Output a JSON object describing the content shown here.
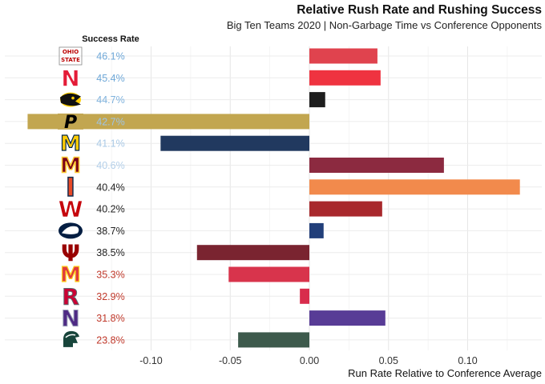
{
  "chart_data": {
    "type": "bar",
    "orientation": "horizontal",
    "title": "Relative Rush Rate and Rushing Success",
    "subtitle": "Big Ten Teams 2020 | Non-Garbage Time vs Conference Opponents",
    "xlabel": "Run Rate Relative to Conference Average",
    "success_rate_header": "Success Rate",
    "xlim": [
      -0.18,
      0.15
    ],
    "xticks": [
      -0.1,
      -0.05,
      0.0,
      0.05,
      0.1
    ],
    "xtick_labels": [
      "-0.10",
      "-0.05",
      "0.00",
      "0.05",
      "0.10"
    ],
    "grid": true,
    "teams": [
      {
        "logo": "ohio-state-logo",
        "logo_letter": "OHIO STATE",
        "success_rate": "46.1%",
        "sr_color": "#6fa8d8",
        "value": 0.043,
        "bar_color": "#e0434e",
        "logo_color": "#bb0000"
      },
      {
        "logo": "nebraska-logo",
        "logo_letter": "N",
        "success_rate": "45.4%",
        "sr_color": "#6fa8d8",
        "value": 0.045,
        "bar_color": "#ef3340",
        "logo_color": "#e41c38"
      },
      {
        "logo": "iowa-logo",
        "logo_letter": "",
        "success_rate": "44.7%",
        "sr_color": "#7fb2dd",
        "value": 0.01,
        "bar_color": "#1e1e1e",
        "logo_color": "#111111"
      },
      {
        "logo": "purdue-logo",
        "logo_letter": "P",
        "success_rate": "42.7%",
        "sr_color": "#9ec4e4",
        "value": -0.178,
        "bar_color": "#c2a650",
        "logo_color": "#000000"
      },
      {
        "logo": "michigan-logo",
        "logo_letter": "M",
        "success_rate": "41.1%",
        "sr_color": "#a9c9e6",
        "value": -0.094,
        "bar_color": "#21395f",
        "logo_color": "#ffcb05"
      },
      {
        "logo": "minnesota-logo",
        "logo_letter": "M",
        "success_rate": "40.6%",
        "sr_color": "#b3cfe9",
        "value": 0.085,
        "bar_color": "#8c2a40",
        "logo_color": "#7a0019"
      },
      {
        "logo": "illinois-logo",
        "logo_letter": "I",
        "success_rate": "40.4%",
        "sr_color": "#222222",
        "value": 0.133,
        "bar_color": "#f28a4c",
        "logo_color": "#e84a27"
      },
      {
        "logo": "wisconsin-logo",
        "logo_letter": "W",
        "success_rate": "40.2%",
        "sr_color": "#222222",
        "value": 0.046,
        "bar_color": "#a8282c",
        "logo_color": "#c5050c"
      },
      {
        "logo": "penn-state-logo",
        "logo_letter": "",
        "success_rate": "38.7%",
        "sr_color": "#222222",
        "value": 0.009,
        "bar_color": "#223f7a",
        "logo_color": "#041e42"
      },
      {
        "logo": "indiana-logo",
        "logo_letter": "IU",
        "success_rate": "38.5%",
        "sr_color": "#222222",
        "value": -0.071,
        "bar_color": "#7a2430",
        "logo_color": "#990000"
      },
      {
        "logo": "maryland-logo",
        "logo_letter": "M",
        "success_rate": "35.3%",
        "sr_color": "#c0392b",
        "value": -0.051,
        "bar_color": "#d8344c",
        "logo_color": "#e03a3e"
      },
      {
        "logo": "rutgers-logo",
        "logo_letter": "R",
        "success_rate": "32.9%",
        "sr_color": "#c0392b",
        "value": -0.006,
        "bar_color": "#d82c4c",
        "logo_color": "#cc0033"
      },
      {
        "logo": "northwestern-logo",
        "logo_letter": "N",
        "success_rate": "31.8%",
        "sr_color": "#c0392b",
        "value": 0.048,
        "bar_color": "#583c96",
        "logo_color": "#4e2a84"
      },
      {
        "logo": "michigan-state-logo",
        "logo_letter": "",
        "success_rate": "23.8%",
        "sr_color": "#c0392b",
        "value": -0.045,
        "bar_color": "#3d5a4c",
        "logo_color": "#18453b"
      }
    ]
  }
}
